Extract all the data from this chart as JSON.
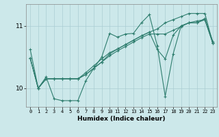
{
  "title": "",
  "xlabel": "Humidex (Indice chaleur)",
  "ylabel": "",
  "bg_color": "#cce8ea",
  "line_color": "#2e7d6e",
  "grid_color": "#aacdd2",
  "xlim": [
    -0.5,
    23.5
  ],
  "ylim": [
    9.7,
    11.35
  ],
  "yticks": [
    10,
    11
  ],
  "xticks": [
    0,
    1,
    2,
    3,
    4,
    5,
    6,
    7,
    8,
    9,
    10,
    11,
    12,
    13,
    14,
    15,
    16,
    17,
    18,
    19,
    20,
    21,
    22,
    23
  ],
  "line1": [
    10.62,
    10.0,
    10.18,
    9.83,
    9.8,
    9.8,
    9.8,
    10.12,
    10.32,
    10.5,
    10.88,
    10.82,
    10.87,
    10.88,
    11.05,
    11.18,
    10.68,
    9.87,
    10.55,
    11.0,
    11.05,
    11.05,
    11.12,
    10.75
  ],
  "line2": [
    10.48,
    10.0,
    10.15,
    10.15,
    10.15,
    10.15,
    10.15,
    10.22,
    10.32,
    10.42,
    10.52,
    10.6,
    10.67,
    10.74,
    10.81,
    10.87,
    10.87,
    10.87,
    10.93,
    10.99,
    11.05,
    11.08,
    11.1,
    10.72
  ],
  "line3": [
    10.48,
    10.0,
    10.15,
    10.15,
    10.15,
    10.15,
    10.15,
    10.22,
    10.32,
    10.42,
    10.55,
    10.63,
    10.7,
    10.77,
    10.84,
    10.9,
    10.95,
    11.05,
    11.1,
    11.15,
    11.2,
    11.2,
    11.2,
    10.72
  ],
  "line4": [
    10.48,
    10.0,
    10.15,
    10.15,
    10.15,
    10.15,
    10.15,
    10.25,
    10.36,
    10.47,
    10.57,
    10.63,
    10.7,
    10.77,
    10.84,
    10.9,
    10.62,
    10.47,
    10.85,
    11.0,
    11.05,
    11.05,
    11.1,
    10.72
  ]
}
